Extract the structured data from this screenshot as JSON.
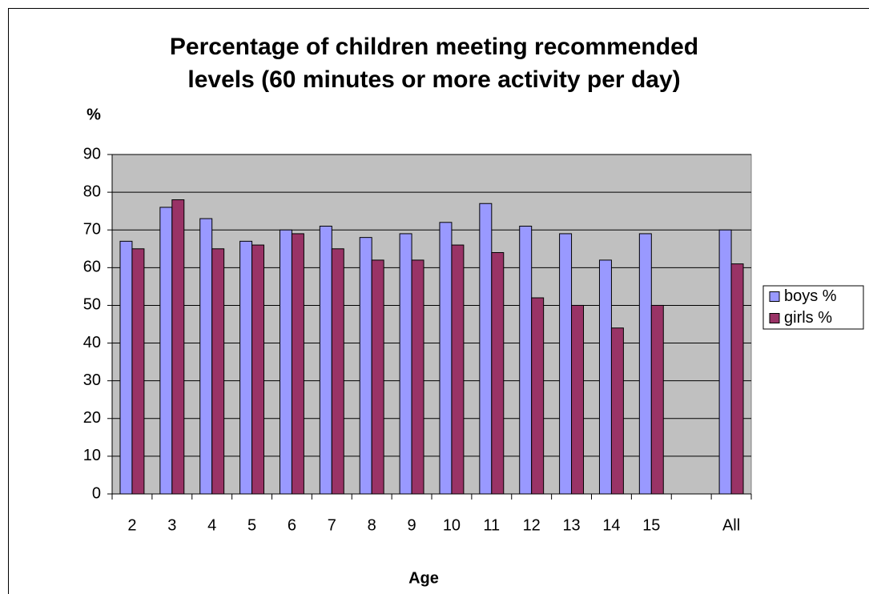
{
  "chart_data": {
    "type": "bar",
    "title": [
      "Percentage of children meeting recommended",
      "levels (60 minutes or more activity per day)"
    ],
    "y_label": "%",
    "x_label": "Age",
    "categories": [
      "2",
      "3",
      "4",
      "5",
      "6",
      "7",
      "8",
      "9",
      "10",
      "11",
      "12",
      "13",
      "14",
      "15",
      null,
      "All"
    ],
    "series": [
      {
        "name": "boys %",
        "color": "#9999ff",
        "values": [
          67,
          76,
          73,
          67,
          70,
          71,
          68,
          69,
          72,
          77,
          71,
          69,
          62,
          69,
          null,
          70
        ]
      },
      {
        "name": "girls %",
        "color": "#993366",
        "values": [
          65,
          78,
          65,
          66,
          69,
          65,
          62,
          62,
          66,
          64,
          52,
          50,
          44,
          50,
          null,
          61
        ]
      }
    ],
    "ylim": [
      0,
      90
    ],
    "yticks": [
      0,
      10,
      20,
      30,
      40,
      50,
      60,
      70,
      80,
      90
    ],
    "grid": true,
    "legend": "right",
    "plot_background": "#c0c0c0"
  }
}
